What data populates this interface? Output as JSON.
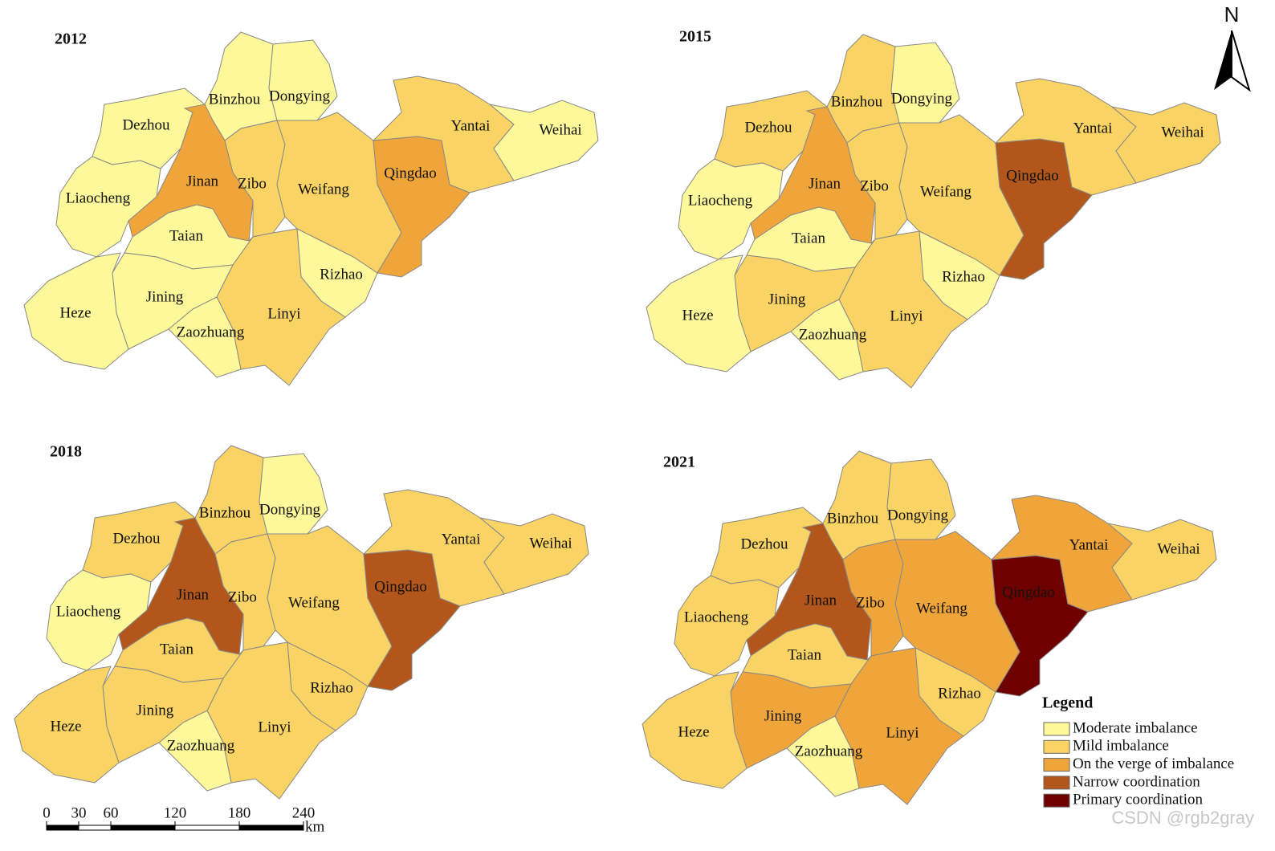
{
  "north": "N",
  "watermark": "CSDN @rgb2gray",
  "legend": {
    "title": "Legend",
    "items": [
      {
        "label": "Moderate imbalance",
        "color": "#fdf99a"
      },
      {
        "label": "Mild imbalance",
        "color": "#f9d364"
      },
      {
        "label": "On the verge of imbalance",
        "color": "#f0a53a"
      },
      {
        "label": "Narrow coordination",
        "color": "#b2561c"
      },
      {
        "label": "Primary coordination",
        "color": "#6e0000"
      }
    ]
  },
  "scale_bar": {
    "ticks": [
      0,
      30,
      60,
      120,
      180,
      240
    ],
    "unit": "km"
  },
  "maps": [
    {
      "year": "2012",
      "cities": [
        {
          "name": "Dezhou",
          "color": "#fdf99a"
        },
        {
          "name": "Binzhou",
          "color": "#fdf99a"
        },
        {
          "name": "Dongying",
          "color": "#fdf99a"
        },
        {
          "name": "Jinan",
          "color": "#f0a53a"
        },
        {
          "name": "Liaocheng",
          "color": "#fdf99a"
        },
        {
          "name": "Zibo",
          "color": "#f9d364"
        },
        {
          "name": "Weifang",
          "color": "#f9d364"
        },
        {
          "name": "Qingdao",
          "color": "#f0a53a"
        },
        {
          "name": "Yantai",
          "color": "#f9d364"
        },
        {
          "name": "Weihai",
          "color": "#fdf99a"
        },
        {
          "name": "Taian",
          "color": "#fdf99a"
        },
        {
          "name": "Rizhao",
          "color": "#fdf99a"
        },
        {
          "name": "Linyi",
          "color": "#f9d364"
        },
        {
          "name": "Zaozhuang",
          "color": "#fdf99a"
        },
        {
          "name": "Jining",
          "color": "#fdf99a"
        },
        {
          "name": "Heze",
          "color": "#fdf99a"
        }
      ]
    },
    {
      "year": "2015",
      "cities": [
        {
          "name": "Dezhou",
          "color": "#f9d364"
        },
        {
          "name": "Binzhou",
          "color": "#f9d364"
        },
        {
          "name": "Dongying",
          "color": "#fdf99a"
        },
        {
          "name": "Jinan",
          "color": "#f0a53a"
        },
        {
          "name": "Liaocheng",
          "color": "#fdf99a"
        },
        {
          "name": "Zibo",
          "color": "#f9d364"
        },
        {
          "name": "Weifang",
          "color": "#f9d364"
        },
        {
          "name": "Qingdao",
          "color": "#b2561c"
        },
        {
          "name": "Yantai",
          "color": "#f9d364"
        },
        {
          "name": "Weihai",
          "color": "#f9d364"
        },
        {
          "name": "Taian",
          "color": "#fdf99a"
        },
        {
          "name": "Rizhao",
          "color": "#fdf99a"
        },
        {
          "name": "Linyi",
          "color": "#f9d364"
        },
        {
          "name": "Zaozhuang",
          "color": "#fdf99a"
        },
        {
          "name": "Jining",
          "color": "#f9d364"
        },
        {
          "name": "Heze",
          "color": "#fdf99a"
        }
      ]
    },
    {
      "year": "2018",
      "cities": [
        {
          "name": "Dezhou",
          "color": "#f9d364"
        },
        {
          "name": "Binzhou",
          "color": "#f9d364"
        },
        {
          "name": "Dongying",
          "color": "#fdf99a"
        },
        {
          "name": "Jinan",
          "color": "#b2561c"
        },
        {
          "name": "Liaocheng",
          "color": "#fdf99a"
        },
        {
          "name": "Zibo",
          "color": "#f9d364"
        },
        {
          "name": "Weifang",
          "color": "#f9d364"
        },
        {
          "name": "Qingdao",
          "color": "#b2561c"
        },
        {
          "name": "Yantai",
          "color": "#f9d364"
        },
        {
          "name": "Weihai",
          "color": "#f9d364"
        },
        {
          "name": "Taian",
          "color": "#f9d364"
        },
        {
          "name": "Rizhao",
          "color": "#f9d364"
        },
        {
          "name": "Linyi",
          "color": "#f9d364"
        },
        {
          "name": "Zaozhuang",
          "color": "#fdf99a"
        },
        {
          "name": "Jining",
          "color": "#f9d364"
        },
        {
          "name": "Heze",
          "color": "#f9d364"
        }
      ]
    },
    {
      "year": "2021",
      "cities": [
        {
          "name": "Dezhou",
          "color": "#f9d364"
        },
        {
          "name": "Binzhou",
          "color": "#f9d364"
        },
        {
          "name": "Dongying",
          "color": "#f9d364"
        },
        {
          "name": "Jinan",
          "color": "#b2561c"
        },
        {
          "name": "Liaocheng",
          "color": "#f9d364"
        },
        {
          "name": "Zibo",
          "color": "#f0a53a"
        },
        {
          "name": "Weifang",
          "color": "#f0a53a"
        },
        {
          "name": "Qingdao",
          "color": "#6e0000"
        },
        {
          "name": "Yantai",
          "color": "#f0a53a"
        },
        {
          "name": "Weihai",
          "color": "#f9d364"
        },
        {
          "name": "Taian",
          "color": "#f9d364"
        },
        {
          "name": "Rizhao",
          "color": "#f9d364"
        },
        {
          "name": "Linyi",
          "color": "#f0a53a"
        },
        {
          "name": "Zaozhuang",
          "color": "#fdf99a"
        },
        {
          "name": "Jining",
          "color": "#f0a53a"
        },
        {
          "name": "Heze",
          "color": "#f9d364"
        }
      ]
    }
  ]
}
